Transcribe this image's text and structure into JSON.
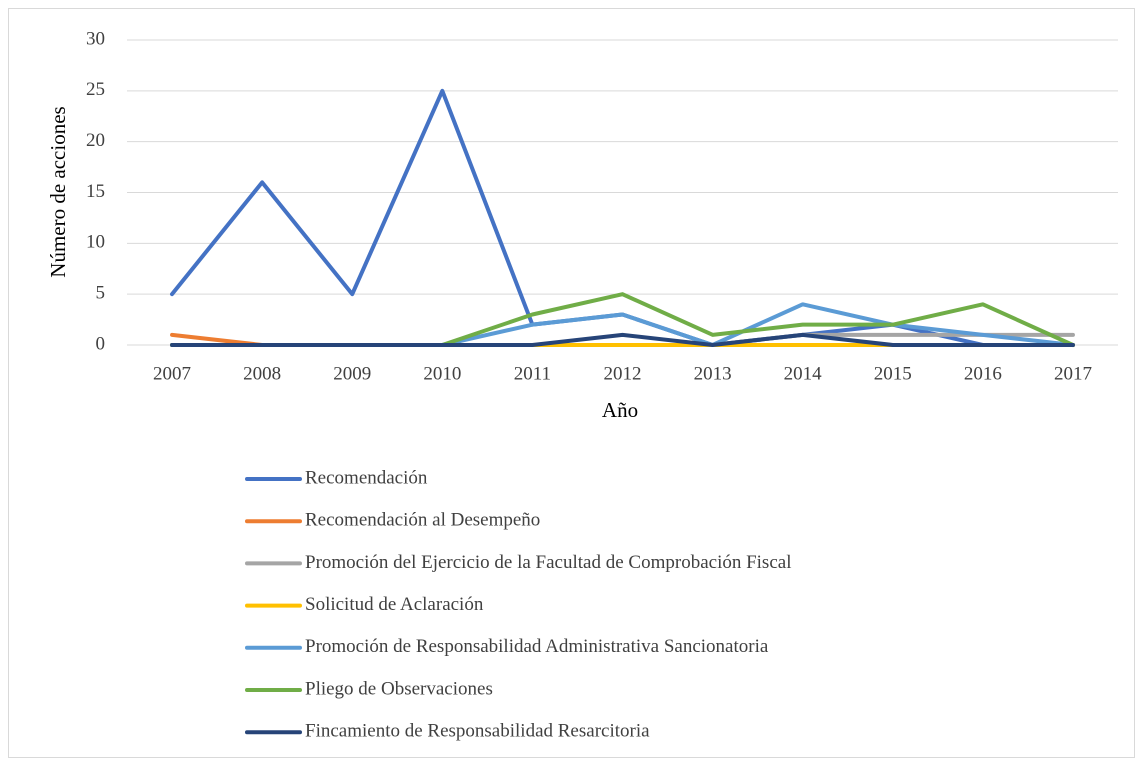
{
  "chart_data": {
    "type": "line",
    "x_label": "Año",
    "y_label": "Número de acciones",
    "categories": [
      "2007",
      "2008",
      "2009",
      "2010",
      "2011",
      "2012",
      "2013",
      "2014",
      "2015",
      "2016",
      "2017"
    ],
    "ylim": [
      0,
      30
    ],
    "yticks": [
      0,
      5,
      10,
      15,
      20,
      25,
      30
    ],
    "grid": true,
    "legend": "bottom",
    "series": [
      {
        "name": "Recomendación",
        "color": "#4472c4",
        "values": [
          5,
          16,
          5,
          25,
          2,
          3,
          0,
          1,
          2,
          0,
          0
        ]
      },
      {
        "name": "Recomendación al Desempeño",
        "color": "#ed7d31",
        "values": [
          1,
          0,
          0,
          0,
          0,
          0,
          0,
          0,
          0,
          0,
          0
        ]
      },
      {
        "name": "Promoción del Ejercicio de la Facultad de Comprobación Fiscal",
        "color": "#a5a5a5",
        "values": [
          0,
          0,
          0,
          0,
          0,
          0,
          0,
          1,
          1,
          1,
          1
        ]
      },
      {
        "name": "Solicitud de Aclaración",
        "color": "#ffc000",
        "values": [
          0,
          0,
          0,
          0,
          0,
          0,
          0,
          0,
          0,
          0,
          0
        ]
      },
      {
        "name": "Promoción de Responsabilidad Administrativa Sancionatoria",
        "color": "#5b9bd5",
        "values": [
          0,
          0,
          0,
          0,
          2,
          3,
          0,
          4,
          2,
          1,
          0
        ]
      },
      {
        "name": "Pliego de Observaciones",
        "color": "#70ad47",
        "values": [
          0,
          0,
          0,
          0,
          3,
          5,
          1,
          2,
          2,
          4,
          0
        ]
      },
      {
        "name": "Fincamiento de Responsabilidad Resarcitoria",
        "color": "#264478",
        "values": [
          0,
          0,
          0,
          0,
          0,
          1,
          0,
          1,
          0,
          0,
          0
        ]
      }
    ]
  }
}
